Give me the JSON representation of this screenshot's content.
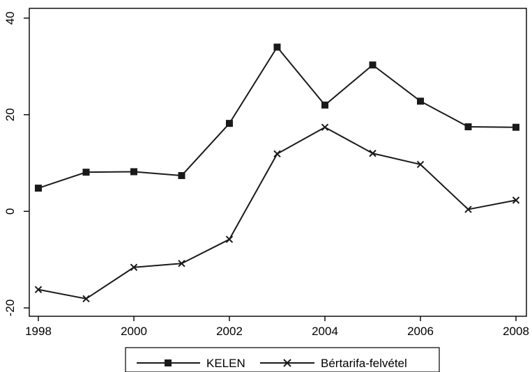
{
  "chart_data": {
    "type": "line",
    "title": "",
    "xlabel": "",
    "ylabel": "",
    "x": [
      1998,
      1999,
      2000,
      2001,
      2002,
      2003,
      2004,
      2005,
      2006,
      2007,
      2008
    ],
    "x_ticks": [
      "1998",
      "2000",
      "2002",
      "2004",
      "2006",
      "2008"
    ],
    "y_ticks": [
      "-20",
      "0",
      "20",
      "40"
    ],
    "xlim": [
      1998,
      2008
    ],
    "ylim": [
      -20,
      40
    ],
    "grid": false,
    "legend_position": "bottom",
    "series": [
      {
        "name": "KELEN",
        "marker": "square",
        "color": "#1a1a1a",
        "values": [
          4.8,
          8.1,
          8.2,
          7.4,
          18.2,
          34.0,
          22.0,
          30.3,
          22.8,
          17.5,
          17.4
        ]
      },
      {
        "name": "Bértarifa-felvétel",
        "marker": "x",
        "color": "#1a1a1a",
        "values": [
          -16.2,
          -18.1,
          -11.6,
          -10.8,
          -5.8,
          11.9,
          17.4,
          12.0,
          9.7,
          0.4,
          2.3
        ]
      }
    ]
  }
}
